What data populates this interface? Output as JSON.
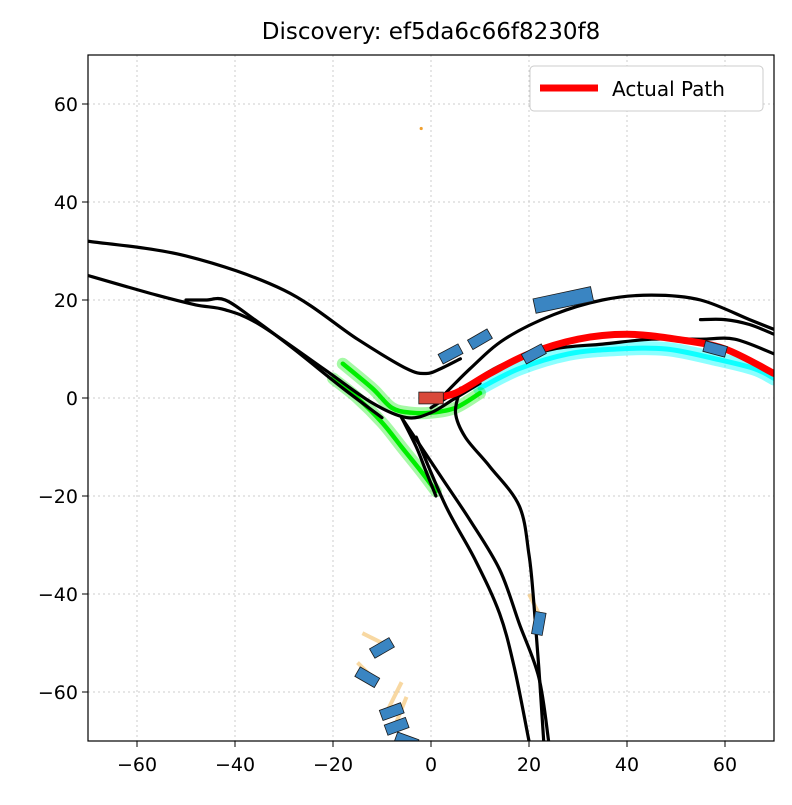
{
  "chart_data": {
    "type": "line",
    "title": "Discovery: ef5da6c66f8230f8",
    "xlabel": "",
    "ylabel": "",
    "xlim": [
      -70,
      70
    ],
    "ylim": [
      -70,
      70
    ],
    "grid": true,
    "legend_position": "top-right",
    "x_ticks": [
      -60,
      -40,
      -20,
      0,
      20,
      40,
      60
    ],
    "y_ticks": [
      -60,
      -40,
      -20,
      0,
      20,
      40,
      60
    ],
    "x_tick_labels": [
      "−60",
      "−40",
      "−20",
      "0",
      "20",
      "40",
      "60"
    ],
    "y_tick_labels": [
      "−60",
      "−40",
      "−20",
      "0",
      "20",
      "40",
      "60"
    ],
    "legend": [
      {
        "label": "Actual Path",
        "color": "#ff0000"
      }
    ],
    "colors": {
      "road": "#000000",
      "actual_path": "#ff0000",
      "predicted_path": "#00ffff",
      "discovery_path": "#00ee00",
      "agent": "#3a85c2",
      "ego": "#d9493a",
      "trail": "#f5c77a",
      "grid": "#cccccc"
    },
    "series": [
      {
        "name": "road-northwest-outer",
        "kind": "road",
        "points": [
          [
            -70,
            32
          ],
          [
            -50,
            29
          ],
          [
            -30,
            22
          ],
          [
            -15,
            12
          ],
          [
            -5,
            6
          ],
          [
            -1,
            5
          ],
          [
            2,
            6
          ],
          [
            6,
            8
          ]
        ]
      },
      {
        "name": "road-northwest-inner",
        "kind": "road",
        "points": [
          [
            -70,
            25
          ],
          [
            -56,
            21
          ],
          [
            -48,
            19
          ],
          [
            -42,
            18
          ],
          [
            -35,
            15
          ],
          [
            -22,
            6
          ],
          [
            -12,
            -1
          ],
          [
            -5,
            -4
          ],
          [
            0,
            -3
          ],
          [
            5,
            0
          ],
          [
            10,
            3
          ]
        ]
      },
      {
        "name": "road-northwest-fork",
        "kind": "road",
        "points": [
          [
            -50,
            20
          ],
          [
            -46,
            20
          ],
          [
            -42,
            20
          ],
          [
            -36,
            16
          ],
          [
            -28,
            10
          ],
          [
            -18,
            2
          ],
          [
            -10,
            -4
          ]
        ]
      },
      {
        "name": "road-east-outer",
        "kind": "road",
        "points": [
          [
            2,
            0
          ],
          [
            8,
            6
          ],
          [
            15,
            12
          ],
          [
            25,
            17
          ],
          [
            35,
            20
          ],
          [
            45,
            21
          ],
          [
            55,
            20
          ],
          [
            65,
            16
          ],
          [
            70,
            14
          ]
        ]
      },
      {
        "name": "road-east-inner",
        "kind": "road",
        "points": [
          [
            0,
            -2
          ],
          [
            8,
            3
          ],
          [
            15,
            7
          ],
          [
            25,
            10
          ],
          [
            35,
            11
          ],
          [
            45,
            12
          ],
          [
            55,
            12
          ],
          [
            62,
            12
          ],
          [
            70,
            9
          ]
        ]
      },
      {
        "name": "road-east-fork",
        "kind": "road",
        "points": [
          [
            55,
            16
          ],
          [
            60,
            16
          ],
          [
            65,
            15
          ],
          [
            70,
            13
          ]
        ]
      },
      {
        "name": "road-south-outer",
        "kind": "road",
        "points": [
          [
            -6,
            -4
          ],
          [
            2,
            -16
          ],
          [
            8,
            -25
          ],
          [
            14,
            -35
          ],
          [
            18,
            -46
          ],
          [
            22,
            -57
          ],
          [
            24,
            -70
          ]
        ]
      },
      {
        "name": "road-south-inner",
        "kind": "road",
        "points": [
          [
            -3,
            -8
          ],
          [
            3,
            -22
          ],
          [
            9,
            -33
          ],
          [
            14,
            -44
          ],
          [
            17,
            -55
          ],
          [
            20,
            -70
          ]
        ]
      },
      {
        "name": "road-south-spur",
        "kind": "road",
        "points": [
          [
            6,
            2
          ],
          [
            5,
            -3
          ],
          [
            7,
            -8
          ],
          [
            12,
            -14
          ],
          [
            18,
            -22
          ],
          [
            20,
            -32
          ],
          [
            21,
            -42
          ],
          [
            22,
            -55
          ],
          [
            23,
            -70
          ]
        ]
      },
      {
        "name": "road-south-loop",
        "kind": "road",
        "points": [
          [
            -6,
            -4
          ],
          [
            -3,
            -10
          ],
          [
            -1,
            -15
          ],
          [
            1,
            -20
          ]
        ]
      },
      {
        "name": "actual-path",
        "kind": "actual",
        "points": [
          [
            0,
            0
          ],
          [
            5,
            1
          ],
          [
            12,
            5
          ],
          [
            20,
            9
          ],
          [
            30,
            12
          ],
          [
            40,
            13
          ],
          [
            50,
            12
          ],
          [
            60,
            10
          ],
          [
            70,
            5
          ]
        ]
      },
      {
        "name": "predicted-path",
        "kind": "predicted",
        "points": [
          [
            10,
            2
          ],
          [
            18,
            6
          ],
          [
            28,
            9
          ],
          [
            38,
            10
          ],
          [
            48,
            10
          ],
          [
            58,
            8
          ],
          [
            66,
            6
          ],
          [
            70,
            4
          ]
        ]
      },
      {
        "name": "discovery-path-a",
        "kind": "discovery",
        "points": [
          [
            -20,
            4
          ],
          [
            -15,
            0
          ],
          [
            -10,
            -5
          ],
          [
            -6,
            -10
          ],
          [
            -2,
            -15
          ],
          [
            1,
            -19
          ]
        ]
      },
      {
        "name": "discovery-path-b",
        "kind": "discovery",
        "points": [
          [
            -18,
            7
          ],
          [
            -12,
            2
          ],
          [
            -8,
            -2
          ],
          [
            -4,
            -3
          ],
          [
            0,
            -3
          ],
          [
            5,
            -2
          ],
          [
            10,
            1
          ]
        ]
      }
    ],
    "vehicles": [
      {
        "name": "ego-vehicle",
        "role": "ego",
        "x": 0,
        "y": 0,
        "heading": 0,
        "length": 5,
        "width": 2.4
      },
      {
        "name": "agent-east-1",
        "role": "agent",
        "x": 27,
        "y": 20,
        "heading": 12,
        "length": 12,
        "width": 3
      },
      {
        "name": "agent-east-2",
        "role": "agent",
        "x": 10,
        "y": 12,
        "heading": 30,
        "length": 4.6,
        "width": 2.2
      },
      {
        "name": "agent-east-3",
        "role": "agent",
        "x": 4,
        "y": 9,
        "heading": 28,
        "length": 4.6,
        "width": 2.2
      },
      {
        "name": "agent-east-4",
        "role": "agent",
        "x": 21,
        "y": 9,
        "heading": 28,
        "length": 4.6,
        "width": 2.2
      },
      {
        "name": "agent-east-5",
        "role": "agent",
        "x": 58,
        "y": 10,
        "heading": -15,
        "length": 4.6,
        "width": 2.2
      },
      {
        "name": "agent-south-1",
        "role": "agent",
        "x": 22,
        "y": -46,
        "heading": 80,
        "length": 4.6,
        "width": 2.2
      },
      {
        "name": "agent-sw-1",
        "role": "agent",
        "x": -10,
        "y": -51,
        "heading": 30,
        "length": 4.6,
        "width": 2.2
      },
      {
        "name": "agent-sw-2",
        "role": "agent",
        "x": -13,
        "y": -57,
        "heading": -30,
        "length": 4.6,
        "width": 2.2
      },
      {
        "name": "agent-sw-3",
        "role": "agent",
        "x": -8,
        "y": -64,
        "heading": 20,
        "length": 4.6,
        "width": 2.2
      },
      {
        "name": "agent-sw-4",
        "role": "agent",
        "x": -7,
        "y": -67,
        "heading": 20,
        "length": 4.6,
        "width": 2.2
      },
      {
        "name": "agent-sw-5",
        "role": "agent",
        "x": -5,
        "y": -70,
        "heading": -20,
        "length": 4.6,
        "width": 2.2
      }
    ],
    "markers": [
      {
        "name": "orange-dot",
        "x": -2,
        "y": 55
      }
    ]
  }
}
